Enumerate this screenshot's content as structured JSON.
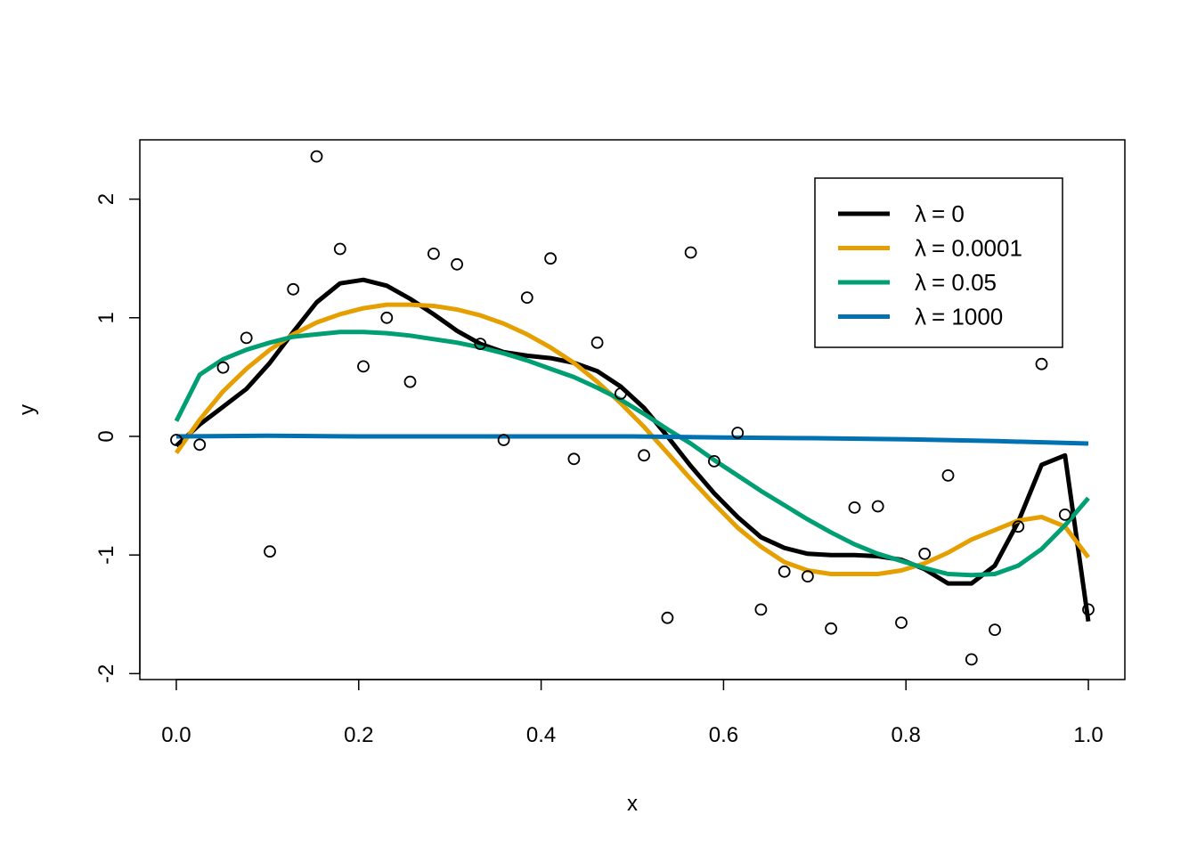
{
  "chart_data": {
    "type": "scatter",
    "xlabel": "x",
    "ylabel": "y",
    "xlim": [
      -0.04,
      1.04
    ],
    "ylim": [
      -2.05,
      2.5
    ],
    "x_ticks": [
      "0.0",
      "0.2",
      "0.4",
      "0.6",
      "0.8",
      "1.0"
    ],
    "y_ticks": [
      "-2",
      "-1",
      "0",
      "1",
      "2"
    ],
    "grid": false,
    "legend_position": "top-right",
    "points": {
      "x": [
        0.0,
        0.0256,
        0.0513,
        0.0769,
        0.1026,
        0.1282,
        0.1538,
        0.1795,
        0.2051,
        0.2308,
        0.2564,
        0.2821,
        0.3077,
        0.3333,
        0.359,
        0.3846,
        0.4103,
        0.4359,
        0.4615,
        0.4872,
        0.5128,
        0.5385,
        0.5641,
        0.5897,
        0.6154,
        0.641,
        0.6667,
        0.6923,
        0.7179,
        0.7436,
        0.7692,
        0.7949,
        0.8205,
        0.8462,
        0.8718,
        0.8974,
        0.9231,
        0.9487,
        0.9744,
        1.0
      ],
      "y": [
        -0.03,
        -0.07,
        0.58,
        0.83,
        -0.97,
        1.24,
        2.36,
        1.58,
        0.59,
        1.0,
        0.46,
        1.54,
        1.45,
        0.78,
        -0.03,
        1.17,
        1.5,
        -0.19,
        0.79,
        0.36,
        -0.16,
        -1.53,
        1.55,
        -0.21,
        0.03,
        -1.46,
        -1.14,
        -1.18,
        -1.62,
        -0.6,
        -0.59,
        -1.57,
        -0.99,
        -0.33,
        -1.88,
        -1.63,
        -0.76,
        0.61,
        -0.66,
        -1.46
      ]
    },
    "series": [
      {
        "name": "λ = 0",
        "color": "#000000",
        "x": [
          0.0,
          0.0256,
          0.0513,
          0.0769,
          0.1026,
          0.1282,
          0.1538,
          0.1795,
          0.2051,
          0.2308,
          0.2564,
          0.2821,
          0.3077,
          0.3333,
          0.359,
          0.3846,
          0.4103,
          0.4359,
          0.4615,
          0.4872,
          0.5128,
          0.5385,
          0.5641,
          0.5897,
          0.6154,
          0.641,
          0.6667,
          0.6923,
          0.7179,
          0.7436,
          0.7692,
          0.7949,
          0.8205,
          0.8462,
          0.8718,
          0.8974,
          0.9231,
          0.9487,
          0.9744,
          1.0
        ],
        "y": [
          -0.08,
          0.1,
          0.25,
          0.4,
          0.62,
          0.88,
          1.13,
          1.29,
          1.32,
          1.27,
          1.16,
          1.03,
          0.89,
          0.78,
          0.71,
          0.68,
          0.66,
          0.62,
          0.55,
          0.42,
          0.24,
          0.0,
          -0.25,
          -0.48,
          -0.68,
          -0.85,
          -0.94,
          -0.99,
          -1.0,
          -1.0,
          -1.01,
          -1.04,
          -1.12,
          -1.24,
          -1.24,
          -1.09,
          -0.72,
          -0.24,
          -0.16,
          -1.56
        ]
      },
      {
        "name": "λ = 0.0001",
        "color": "#E69F00",
        "x": [
          0.0,
          0.0256,
          0.0513,
          0.0769,
          0.1026,
          0.1282,
          0.1538,
          0.1795,
          0.2051,
          0.2308,
          0.2564,
          0.2821,
          0.3077,
          0.3333,
          0.359,
          0.3846,
          0.4103,
          0.4359,
          0.4615,
          0.4872,
          0.5128,
          0.5385,
          0.5641,
          0.5897,
          0.6154,
          0.641,
          0.6667,
          0.6923,
          0.7179,
          0.7436,
          0.7692,
          0.7949,
          0.8205,
          0.8462,
          0.8718,
          0.8974,
          0.9231,
          0.9487,
          0.9744,
          1.0
        ],
        "y": [
          -0.14,
          0.14,
          0.38,
          0.57,
          0.73,
          0.86,
          0.96,
          1.03,
          1.08,
          1.11,
          1.11,
          1.1,
          1.07,
          1.02,
          0.95,
          0.86,
          0.75,
          0.62,
          0.46,
          0.28,
          0.08,
          -0.14,
          -0.36,
          -0.57,
          -0.77,
          -0.93,
          -1.06,
          -1.13,
          -1.16,
          -1.16,
          -1.16,
          -1.13,
          -1.07,
          -0.98,
          -0.87,
          -0.79,
          -0.71,
          -0.68,
          -0.76,
          -1.02
        ]
      },
      {
        "name": "λ = 0.05",
        "color": "#009E73",
        "x": [
          0.0,
          0.0256,
          0.0513,
          0.0769,
          0.1026,
          0.1282,
          0.1538,
          0.1795,
          0.2051,
          0.2308,
          0.2564,
          0.2821,
          0.3077,
          0.3333,
          0.359,
          0.3846,
          0.4103,
          0.4359,
          0.4615,
          0.4872,
          0.5128,
          0.5385,
          0.5641,
          0.5897,
          0.6154,
          0.641,
          0.6667,
          0.6923,
          0.7179,
          0.7436,
          0.7692,
          0.7949,
          0.8205,
          0.8462,
          0.8718,
          0.8974,
          0.9231,
          0.9487,
          0.9744,
          1.0
        ],
        "y": [
          0.13,
          0.52,
          0.65,
          0.73,
          0.79,
          0.84,
          0.86,
          0.88,
          0.88,
          0.87,
          0.85,
          0.82,
          0.79,
          0.75,
          0.7,
          0.64,
          0.57,
          0.5,
          0.41,
          0.31,
          0.19,
          0.06,
          -0.06,
          -0.2,
          -0.33,
          -0.46,
          -0.58,
          -0.7,
          -0.81,
          -0.91,
          -0.99,
          -1.05,
          -1.11,
          -1.16,
          -1.17,
          -1.16,
          -1.09,
          -0.95,
          -0.75,
          -0.52
        ]
      },
      {
        "name": "λ = 1000",
        "color": "#0072B2",
        "x": [
          0.0,
          0.1,
          0.2,
          0.3,
          0.4,
          0.5,
          0.6,
          0.7,
          0.8,
          0.9,
          1.0
        ],
        "y": [
          0.0,
          0.005,
          0.0,
          0.0,
          0.0,
          0.0,
          -0.01,
          -0.015,
          -0.025,
          -0.04,
          -0.06
        ]
      }
    ],
    "legend": [
      {
        "symbol": "λ",
        "value": "= 0",
        "color": "#000000"
      },
      {
        "symbol": "λ",
        "value": "= 0.0001",
        "color": "#E69F00"
      },
      {
        "symbol": "λ",
        "value": "= 0.05",
        "color": "#009E73"
      },
      {
        "symbol": "λ",
        "value": "= 1000",
        "color": "#0072B2"
      }
    ]
  }
}
